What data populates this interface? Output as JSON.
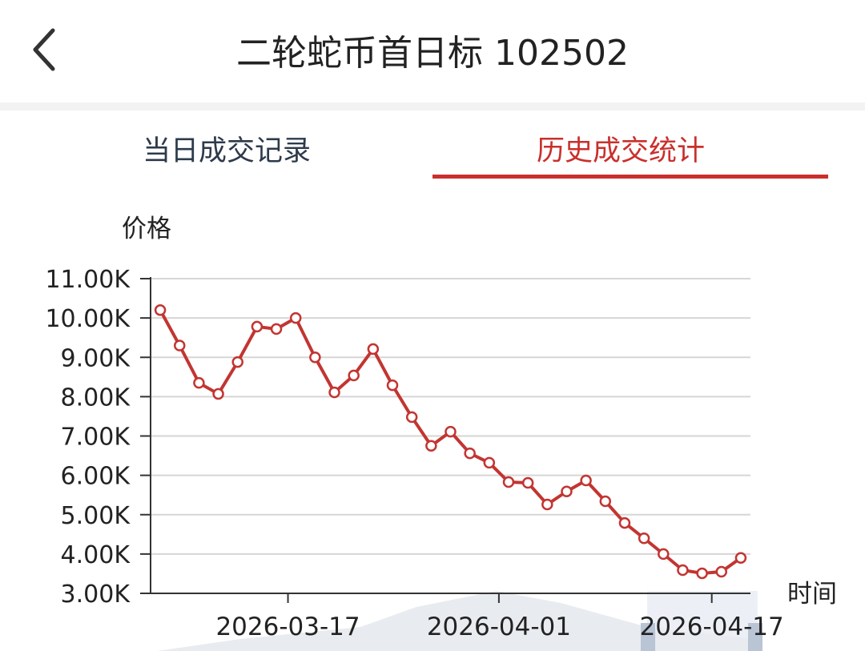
{
  "header": {
    "title": "二轮蛇币首日标 102502"
  },
  "tabs": [
    "当日成交记录",
    "历史成交统计"
  ],
  "chart_data": {
    "type": "line",
    "y_label": "价格",
    "x_label": "时间",
    "categories": [
      null,
      null,
      null,
      null,
      null,
      null,
      null,
      null,
      null,
      null,
      null,
      null,
      null,
      null,
      null,
      null,
      null,
      null,
      null,
      null,
      null,
      null,
      null,
      null,
      null,
      null,
      null,
      null,
      null,
      null,
      null
    ],
    "xlim": [
      -0.5,
      30.5
    ],
    "xticks": [
      {
        "value": 6.6,
        "label": "2026-03-17"
      },
      {
        "value": 17.5,
        "label": "2026-04-01"
      },
      {
        "value": 28.5,
        "label": "2026-04-17"
      }
    ],
    "series": [
      {
        "color": "#c23531",
        "values": [
          10200,
          9300,
          8350,
          8070,
          8880,
          9780,
          9720,
          10000,
          9000,
          8110,
          8540,
          9210,
          8290,
          7480,
          6750,
          7110,
          6560,
          6320,
          5830,
          5810,
          5260,
          5590,
          5870,
          5340,
          4790,
          4400,
          4000,
          3590,
          3510,
          3550,
          3900
        ]
      }
    ],
    "ylim": [
      3000,
      11000
    ],
    "yticks": [
      {
        "value": 3000,
        "label": "3.00K"
      },
      {
        "value": 4000,
        "label": "4.00K"
      },
      {
        "value": 5000,
        "label": "5.00K"
      },
      {
        "value": 6000,
        "label": "6.00K"
      },
      {
        "value": 7000,
        "label": "7.00K"
      },
      {
        "value": 8000,
        "label": "8.00K"
      },
      {
        "value": 9000,
        "label": "9.00K"
      },
      {
        "value": 10000,
        "label": "10.00K"
      },
      {
        "value": 11000,
        "label": "11.00K"
      }
    ],
    "grid": true
  }
}
